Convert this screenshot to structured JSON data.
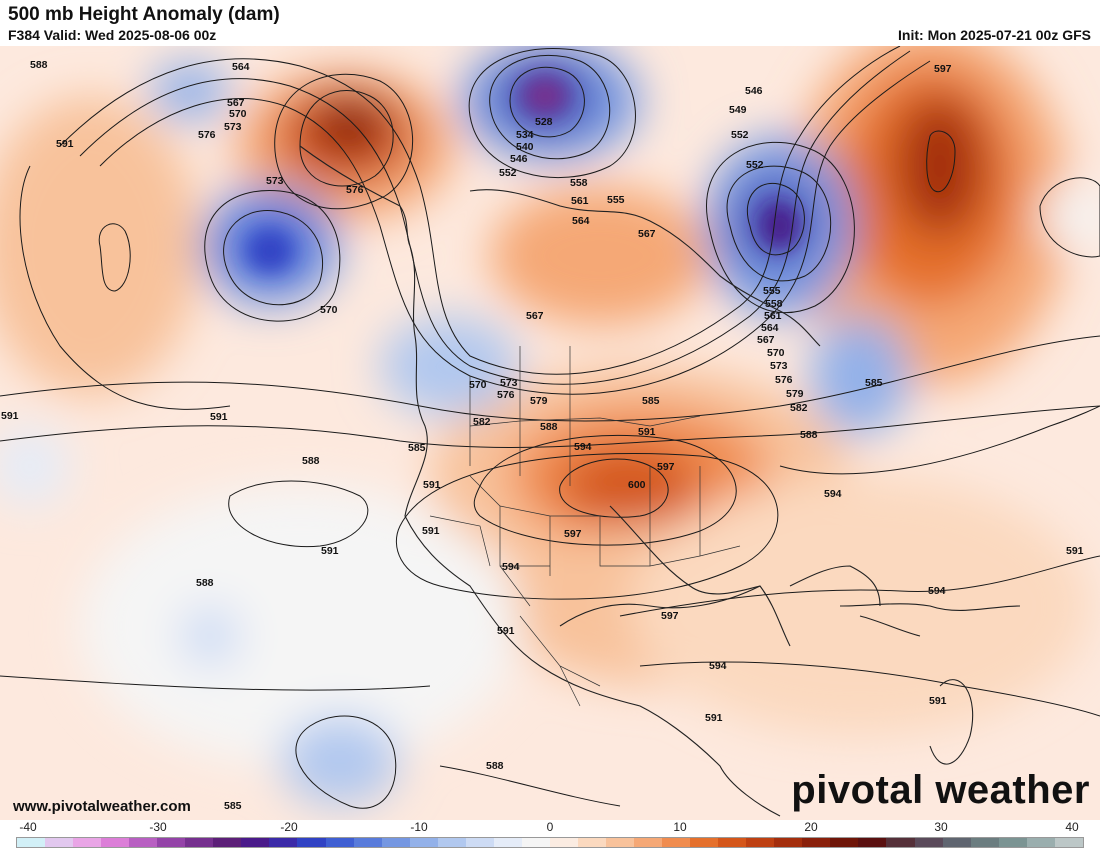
{
  "header": {
    "title": "500 mb Height Anomaly (dam)",
    "valid": "F384 Valid: Wed 2025-08-06 00z",
    "init": "Init: Mon 2025-07-21 00z GFS"
  },
  "footer": {
    "website": "www.pivotalweather.com",
    "brand": "pivotal weather"
  },
  "colorbar": {
    "ticks": [
      "-40",
      "-30",
      "-20",
      "-10",
      "0",
      "10",
      "20",
      "30",
      "40"
    ],
    "colors": [
      "#d2f0f7",
      "#e2c8ef",
      "#e9a5e6",
      "#dc7ed8",
      "#b85fc2",
      "#9443a8",
      "#76308f",
      "#5c1f78",
      "#4a1a8a",
      "#3b2aa8",
      "#3042c4",
      "#3f5fd3",
      "#587bdb",
      "#7597e2",
      "#93b1e9",
      "#b1c8ef",
      "#cddbf4",
      "#e5ecf8",
      "#f5f5f5",
      "#fbece2",
      "#fbd9bf",
      "#f8c29b",
      "#f5a876",
      "#f08c4f",
      "#e5702c",
      "#d4561a",
      "#be4012",
      "#a42e0d",
      "#8a200b",
      "#6f1508",
      "#5a1010",
      "#553039",
      "#5a4a5a",
      "#5f6570",
      "#6b7d80",
      "#7b9493",
      "#9aaeae",
      "#bcc7c7"
    ]
  },
  "map": {
    "contour_labels": [
      "588",
      "564",
      "567",
      "570",
      "573",
      "576",
      "591",
      "573",
      "576",
      "528",
      "534",
      "540",
      "546",
      "552",
      "546",
      "549",
      "552",
      "552",
      "558",
      "561",
      "564",
      "555",
      "567",
      "567",
      "570",
      "591",
      "588",
      "570",
      "573",
      "576",
      "579",
      "582",
      "585",
      "588",
      "591",
      "594",
      "597",
      "600",
      "585",
      "591",
      "597",
      "588",
      "591",
      "594",
      "591",
      "597",
      "555",
      "558",
      "561",
      "564",
      "567",
      "570",
      "573",
      "576",
      "579",
      "582",
      "585",
      "588",
      "594",
      "597",
      "591",
      "594",
      "591",
      "591",
      "594",
      "591",
      "588",
      "585",
      "591"
    ]
  }
}
